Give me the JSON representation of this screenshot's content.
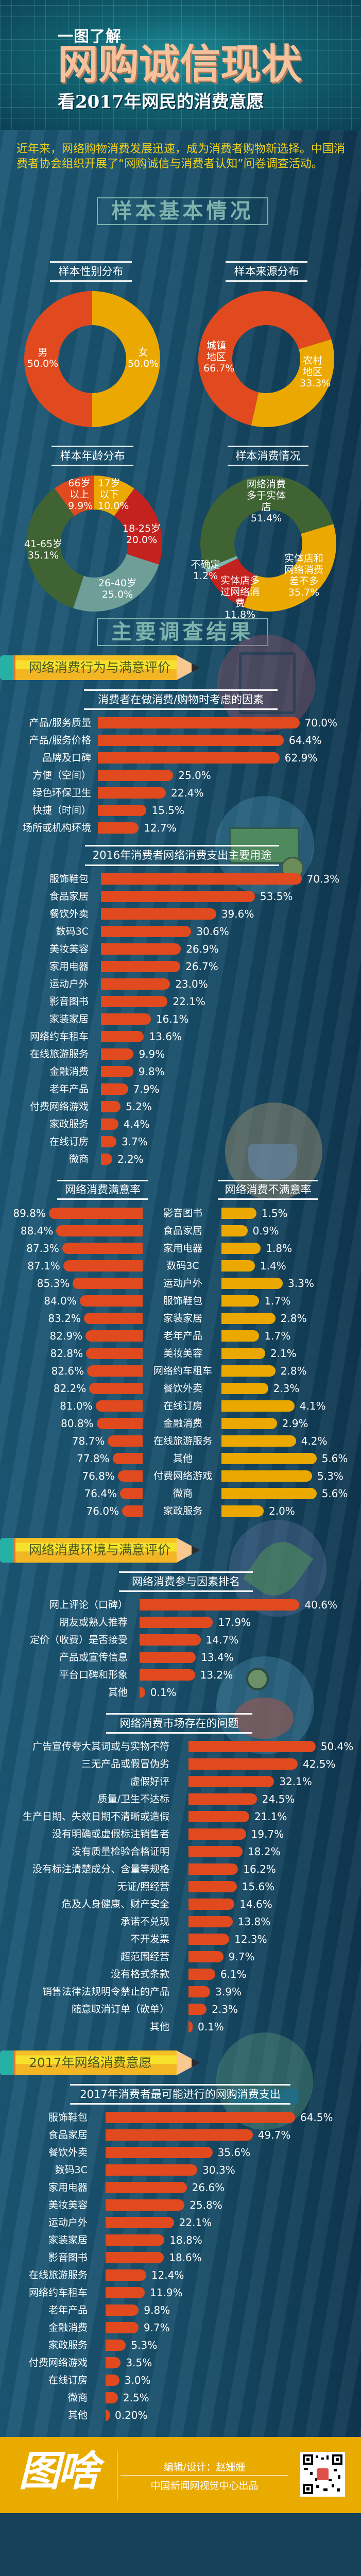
{
  "header": {
    "kicker": "一图了解",
    "title": "网购诚信现状",
    "subtitle": "看2017年网民的消费意愿"
  },
  "intro": "近年来，网络购物消费发展迅速，成为消费者购物新选择。中国消费者协会组织开展了“网购诚信与消费者认知”问卷调查活动。",
  "sections": {
    "sample": "样本基本情况",
    "results": "主要调查结果"
  },
  "banners": {
    "behavior": "网络消费行为与满意评价",
    "environment": "网络消费环境与满意评价",
    "intent": "2017年网络消费意愿"
  },
  "colors": {
    "orange": "#e04a1e",
    "yellow": "#eaa800",
    "red": "#c4221f",
    "teal_gray": "#6f9e98",
    "green": "#3f6333",
    "light_teal": "#7fb3ad",
    "footer": "#eaab00",
    "title": "#f6c29c",
    "intro_text": "#f2d21b"
  },
  "chart_data": [
    {
      "type": "pie",
      "title": "样本性别分布",
      "slices": [
        {
          "name": "女",
          "value": 50.0,
          "label": "50.0%",
          "color": "#eaa800"
        },
        {
          "name": "男",
          "value": 50.0,
          "label": "50.0%",
          "color": "#e04a1e"
        }
      ]
    },
    {
      "type": "pie",
      "title": "样本来源分布",
      "slices": [
        {
          "name": "农村地区",
          "value": 33.3,
          "label": "33.3%",
          "color": "#eaa800"
        },
        {
          "name": "城镇地区",
          "value": 66.7,
          "label": "66.7%",
          "color": "#e04a1e"
        }
      ]
    },
    {
      "type": "pie",
      "title": "样本年龄分布",
      "slices": [
        {
          "name": "17岁以下",
          "value": 10.0,
          "label": "10.0%",
          "color": "#eaa800"
        },
        {
          "name": "18-25岁",
          "value": 20.0,
          "label": "20.0%",
          "color": "#c4221f"
        },
        {
          "name": "26-40岁",
          "value": 25.0,
          "label": "25.0%",
          "color": "#6f9e98"
        },
        {
          "name": "41-65岁",
          "value": 35.1,
          "label": "35.1%",
          "color": "#3f6333"
        },
        {
          "name": "66岁以上",
          "value": 9.9,
          "label": "9.9%",
          "color": "#e04a1e"
        }
      ]
    },
    {
      "type": "pie",
      "title": "样本消费情况",
      "slices": [
        {
          "name": "实体店和网络消费差不多",
          "value": 35.7,
          "label": "35.7%",
          "color": "#eaa800"
        },
        {
          "name": "实体店多过网络消费",
          "value": 11.8,
          "label": "11.8%",
          "color": "#c4221f"
        },
        {
          "name": "不确定",
          "value": 1.2,
          "label": "1.2%",
          "color": "#7fb3ad"
        },
        {
          "name": "网络消费多于实体店",
          "value": 51.4,
          "label": "51.4%",
          "color": "#3f6333"
        }
      ]
    },
    {
      "type": "bar",
      "title": "消费者在做消费/购物时考虑的因素",
      "items": [
        {
          "name": "产品/服务质量",
          "value": 70.0,
          "label": "70.0%"
        },
        {
          "name": "产品/服务价格",
          "value": 64.4,
          "label": "64.4%"
        },
        {
          "name": "品牌及口碑",
          "value": 62.9,
          "label": "62.9%"
        },
        {
          "name": "方便（空间）",
          "value": 25.0,
          "label": "25.0%"
        },
        {
          "name": "绿色环保卫生",
          "value": 22.4,
          "label": "22.4%"
        },
        {
          "name": "快捷（时间）",
          "value": 15.5,
          "label": "15.5%"
        },
        {
          "name": "场所或机构环境",
          "value": 12.7,
          "label": "12.7%"
        }
      ]
    },
    {
      "type": "bar",
      "title": "2016年消费者网络消费支出主要用途",
      "items": [
        {
          "name": "服饰鞋包",
          "value": 70.3,
          "label": "70.3%"
        },
        {
          "name": "食品家居",
          "value": 53.5,
          "label": "53.5%"
        },
        {
          "name": "餐饮外卖",
          "value": 39.6,
          "label": "39.6%"
        },
        {
          "name": "数码3C",
          "value": 30.6,
          "label": "30.6%"
        },
        {
          "name": "美妆美容",
          "value": 26.9,
          "label": "26.9%"
        },
        {
          "name": "家用电器",
          "value": 26.7,
          "label": "26.7%"
        },
        {
          "name": "运动户外",
          "value": 23.0,
          "label": "23.0%"
        },
        {
          "name": "影音图书",
          "value": 22.1,
          "label": "22.1%"
        },
        {
          "name": "家装家居",
          "value": 16.1,
          "label": "16.1%"
        },
        {
          "name": "网络约车租车",
          "value": 13.6,
          "label": "13.6%"
        },
        {
          "name": "在线旅游服务",
          "value": 9.9,
          "label": "9.9%"
        },
        {
          "name": "金融消费",
          "value": 9.8,
          "label": "9.8%"
        },
        {
          "name": "老年产品",
          "value": 7.9,
          "label": "7.9%"
        },
        {
          "name": "付费网络游戏",
          "value": 5.2,
          "label": "5.2%"
        },
        {
          "name": "家政服务",
          "value": 4.4,
          "label": "4.4%"
        },
        {
          "name": "在线订房",
          "value": 3.7,
          "label": "3.7%"
        },
        {
          "name": "微商",
          "value": 2.2,
          "label": "2.2%"
        }
      ]
    },
    {
      "type": "bar",
      "subtype": "diverging",
      "title_left": "网络消费满意率",
      "title_right": "网络消费不满意率",
      "items": [
        {
          "name": "影音图书",
          "satisfied": 89.8,
          "satisfied_label": "89.8%",
          "dissatisfied": 1.5,
          "dissatisfied_label": "1.5%"
        },
        {
          "name": "食品家居",
          "satisfied": 88.4,
          "satisfied_label": "88.4%",
          "dissatisfied": 0.9,
          "dissatisfied_label": "0.9%"
        },
        {
          "name": "家用电器",
          "satisfied": 87.3,
          "satisfied_label": "87.3%",
          "dissatisfied": 1.8,
          "dissatisfied_label": "1.8%"
        },
        {
          "name": "数码3C",
          "satisfied": 87.1,
          "satisfied_label": "87.1%",
          "dissatisfied": 1.4,
          "dissatisfied_label": "1.4%"
        },
        {
          "name": "运动户外",
          "satisfied": 85.3,
          "satisfied_label": "85.3%",
          "dissatisfied": 3.3,
          "dissatisfied_label": "3.3%"
        },
        {
          "name": "服饰鞋包",
          "satisfied": 84.0,
          "satisfied_label": "84.0%",
          "dissatisfied": 1.7,
          "dissatisfied_label": "1.7%"
        },
        {
          "name": "家装家居",
          "satisfied": 83.2,
          "satisfied_label": "83.2%",
          "dissatisfied": 2.8,
          "dissatisfied_label": "2.8%"
        },
        {
          "name": "老年产品",
          "satisfied": 82.9,
          "satisfied_label": "82.9%",
          "dissatisfied": 1.7,
          "dissatisfied_label": "1.7%"
        },
        {
          "name": "美妆美容",
          "satisfied": 82.8,
          "satisfied_label": "82.8%",
          "dissatisfied": 2.1,
          "dissatisfied_label": "2.1%"
        },
        {
          "name": "网络约车租车",
          "satisfied": 82.6,
          "satisfied_label": "82.6%",
          "dissatisfied": 2.8,
          "dissatisfied_label": "2.8%"
        },
        {
          "name": "餐饮外卖",
          "satisfied": 82.2,
          "satisfied_label": "82.2%",
          "dissatisfied": 2.3,
          "dissatisfied_label": "2.3%"
        },
        {
          "name": "在线订房",
          "satisfied": 81.0,
          "satisfied_label": "81.0%",
          "dissatisfied": 4.1,
          "dissatisfied_label": "4.1%"
        },
        {
          "name": "金融消费",
          "satisfied": 80.8,
          "satisfied_label": "80.8%",
          "dissatisfied": 2.9,
          "dissatisfied_label": "2.9%"
        },
        {
          "name": "在线旅游服务",
          "satisfied": 78.7,
          "satisfied_label": "78.7%",
          "dissatisfied": 4.2,
          "dissatisfied_label": "4.2%"
        },
        {
          "name": "其他",
          "satisfied": 77.8,
          "satisfied_label": "77.8%",
          "dissatisfied": 5.6,
          "dissatisfied_label": "5.6%"
        },
        {
          "name": "付费网络游戏",
          "satisfied": 76.8,
          "satisfied_label": "76.8%",
          "dissatisfied": 5.3,
          "dissatisfied_label": "5.3%"
        },
        {
          "name": "微商",
          "satisfied": 76.4,
          "satisfied_label": "76.4%",
          "dissatisfied": 5.6,
          "dissatisfied_label": "5.6%"
        },
        {
          "name": "家政服务",
          "satisfied": 76.0,
          "satisfied_label": "76.0%",
          "dissatisfied": 2.0,
          "dissatisfied_label": "2.0%"
        }
      ]
    },
    {
      "type": "bar",
      "title": "网络消费参与因素排名",
      "items": [
        {
          "name": "网上评论（口碑）",
          "value": 40.6,
          "label": "40.6%"
        },
        {
          "name": "朋友或熟人推荐",
          "value": 17.9,
          "label": "17.9%"
        },
        {
          "name": "定价（收费）是否接受",
          "value": 14.7,
          "label": "14.7%"
        },
        {
          "name": "产品或宣传信息",
          "value": 13.4,
          "label": "13.4%"
        },
        {
          "name": "平台口碑和形象",
          "value": 13.2,
          "label": "13.2%"
        },
        {
          "name": "其他",
          "value": 0.1,
          "label": "0.1%"
        }
      ]
    },
    {
      "type": "bar",
      "title": "网络消费市场存在的问题",
      "items": [
        {
          "name": "广告宣传夸大其词或与实物不符",
          "value": 50.4,
          "label": "50.4%"
        },
        {
          "name": "三无产品或假冒伪劣",
          "value": 42.5,
          "label": "42.5%"
        },
        {
          "name": "虚假好评",
          "value": 32.1,
          "label": "32.1%"
        },
        {
          "name": "质量/卫生不达标",
          "value": 24.5,
          "label": "24.5%"
        },
        {
          "name": "生产日期、失效日期不清晰或造假",
          "value": 21.1,
          "label": "21.1%"
        },
        {
          "name": "没有明确或虚假标注销售者",
          "value": 19.7,
          "label": "19.7%"
        },
        {
          "name": "没有质量检验合格证明",
          "value": 18.2,
          "label": "18.2%"
        },
        {
          "name": "没有标注清楚成分、含量等规格",
          "value": 16.2,
          "label": "16.2%"
        },
        {
          "name": "无证/照经营",
          "value": 15.6,
          "label": "15.6%"
        },
        {
          "name": "危及人身健康、财产安全",
          "value": 14.6,
          "label": "14.6%"
        },
        {
          "name": "承诺不兑现",
          "value": 13.8,
          "label": "13.8%"
        },
        {
          "name": "不开发票",
          "value": 12.3,
          "label": "12.3%"
        },
        {
          "name": "超范围经营",
          "value": 9.7,
          "label": "9.7%"
        },
        {
          "name": "没有格式条款",
          "value": 6.1,
          "label": "6.1%"
        },
        {
          "name": "销售法律法规明令禁止的产品",
          "value": 3.9,
          "label": "3.9%"
        },
        {
          "name": "随意取消订单（砍单）",
          "value": 2.3,
          "label": "2.3%"
        },
        {
          "name": "其他",
          "value": 0.1,
          "label": "0.1%"
        }
      ]
    },
    {
      "type": "bar",
      "title": "2017年消费者最可能进行的网购消费支出",
      "items": [
        {
          "name": "服饰鞋包",
          "value": 64.5,
          "label": "64.5%"
        },
        {
          "name": "食品家居",
          "value": 49.7,
          "label": "49.7%"
        },
        {
          "name": "餐饮外卖",
          "value": 35.6,
          "label": "35.6%"
        },
        {
          "name": "数码3C",
          "value": 30.3,
          "label": "30.3%"
        },
        {
          "name": "家用电器",
          "value": 26.6,
          "label": "26.6%"
        },
        {
          "name": "美妆美容",
          "value": 25.8,
          "label": "25.8%"
        },
        {
          "name": "运动户外",
          "value": 22.1,
          "label": "22.1%"
        },
        {
          "name": "家装家居",
          "value": 18.8,
          "label": "18.8%"
        },
        {
          "name": "影音图书",
          "value": 18.6,
          "label": "18.6%"
        },
        {
          "name": "在线旅游服务",
          "value": 12.4,
          "label": "12.4%"
        },
        {
          "name": "网络约车租车",
          "value": 11.9,
          "label": "11.9%"
        },
        {
          "name": "老年产品",
          "value": 9.8,
          "label": "9.8%"
        },
        {
          "name": "金融消费",
          "value": 9.7,
          "label": "9.7%"
        },
        {
          "name": "家政服务",
          "value": 5.3,
          "label": "5.3%"
        },
        {
          "name": "付费网络游戏",
          "value": 3.5,
          "label": "3.5%"
        },
        {
          "name": "在线订房",
          "value": 3.0,
          "label": "3.0%"
        },
        {
          "name": "微商",
          "value": 2.5,
          "label": "2.5%"
        },
        {
          "name": "其他",
          "value": 0.2,
          "label": "0.20%"
        }
      ]
    }
  ],
  "footer": {
    "logo": "图啥",
    "credit": "编辑/设计：赵姗姗",
    "org": "中国新闻网视觉中心出品",
    "qr_icon": "qr-code-icon"
  }
}
